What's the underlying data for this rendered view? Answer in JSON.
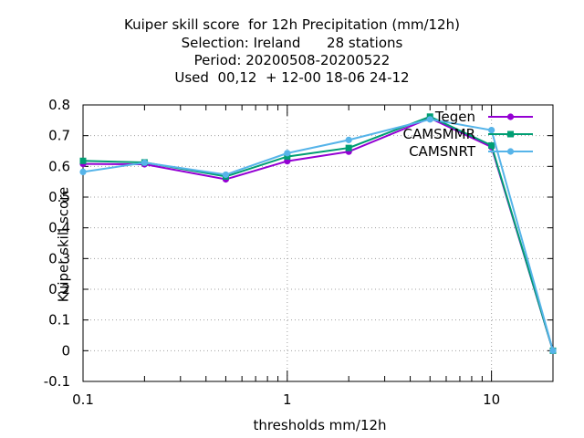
{
  "title_lines": [
    "Kuiper skill score  for 12h Precipitation (mm/12h)",
    "Selection: Ireland      28 stations",
    "Period: 20200508-20200522",
    "Used  00,12  + 12-00 18-06 24-12"
  ],
  "chart_data": {
    "type": "line",
    "xlabel": "thresholds mm/12h",
    "ylabel": "Kuiper skill score",
    "xscale": "log",
    "xlim": [
      0.1,
      20
    ],
    "ylim": [
      -0.1,
      0.8
    ],
    "x_ticks": [
      0.1,
      1,
      10
    ],
    "x_tick_labels": [
      "0.1",
      "1",
      "10"
    ],
    "y_ticks": [
      -0.1,
      0,
      0.1,
      0.2,
      0.3,
      0.4,
      0.5,
      0.6,
      0.7,
      0.8
    ],
    "y_tick_labels": [
      "-0.1",
      "0",
      "0.1",
      "0.2",
      "0.3",
      "0.4",
      "0.5",
      "0.6",
      "0.7",
      "0.8"
    ],
    "grid": true,
    "legend_position": "top-right",
    "x": [
      0.1,
      0.2,
      0.5,
      1,
      2,
      5,
      10,
      20
    ],
    "series": [
      {
        "name": "Tegen",
        "color": "#9400d3",
        "marker": "circle-filled",
        "values": [
          0.608,
          0.607,
          0.558,
          0.617,
          0.648,
          0.757,
          0.663,
          0.0
        ]
      },
      {
        "name": "CAMSMMR",
        "color": "#009e73",
        "marker": "square-filled",
        "values": [
          0.618,
          0.613,
          0.567,
          0.632,
          0.66,
          0.762,
          0.668,
          0.0
        ]
      },
      {
        "name": "CAMSNRT",
        "color": "#56b4e9",
        "marker": "circle-filled",
        "values": [
          0.582,
          0.612,
          0.573,
          0.643,
          0.686,
          0.753,
          0.718,
          0.0
        ]
      }
    ]
  }
}
